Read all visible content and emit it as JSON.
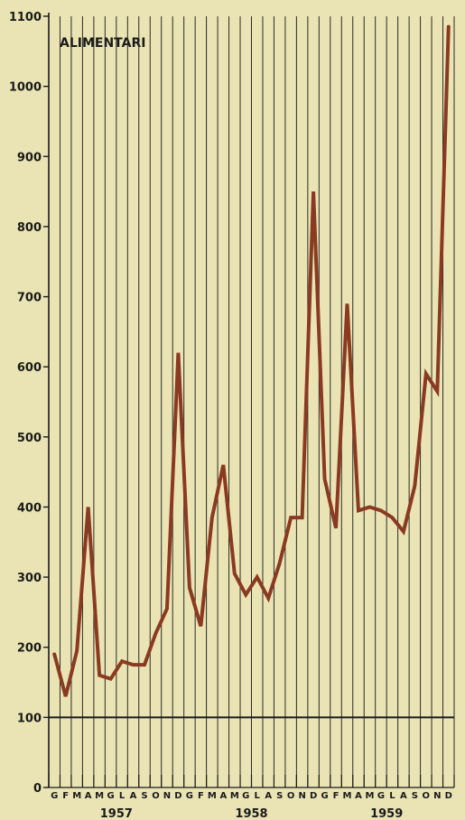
{
  "chart_data": {
    "type": "line",
    "title": "ALIMENTARI",
    "xlabel": "",
    "ylabel": "",
    "ylim": [
      0,
      1100
    ],
    "yticks": [
      0,
      100,
      200,
      300,
      400,
      500,
      600,
      700,
      800,
      900,
      1000,
      1100
    ],
    "reference_line": 100,
    "grid": "vertical lines at each month",
    "month_labels": [
      "G",
      "F",
      "M",
      "A",
      "M",
      "G",
      "L",
      "A",
      "S",
      "O",
      "N",
      "D",
      "G",
      "F",
      "M",
      "A",
      "M",
      "G",
      "L",
      "A",
      "S",
      "O",
      "N",
      "D",
      "G",
      "F",
      "M",
      "A",
      "M",
      "G",
      "L",
      "A",
      "S",
      "O",
      "N",
      "D"
    ],
    "years": [
      "1957",
      "1958",
      "1959"
    ],
    "series": [
      {
        "values": [
          190,
          130,
          195,
          400,
          160,
          155,
          180,
          175,
          175,
          220,
          255,
          620,
          285,
          230,
          385,
          460,
          305,
          275,
          300,
          270,
          320,
          385,
          385,
          850,
          440,
          370,
          690,
          395,
          400,
          395,
          385,
          365,
          430,
          590,
          565,
          1085
        ]
      }
    ],
    "line_color": "#8b3a22"
  }
}
